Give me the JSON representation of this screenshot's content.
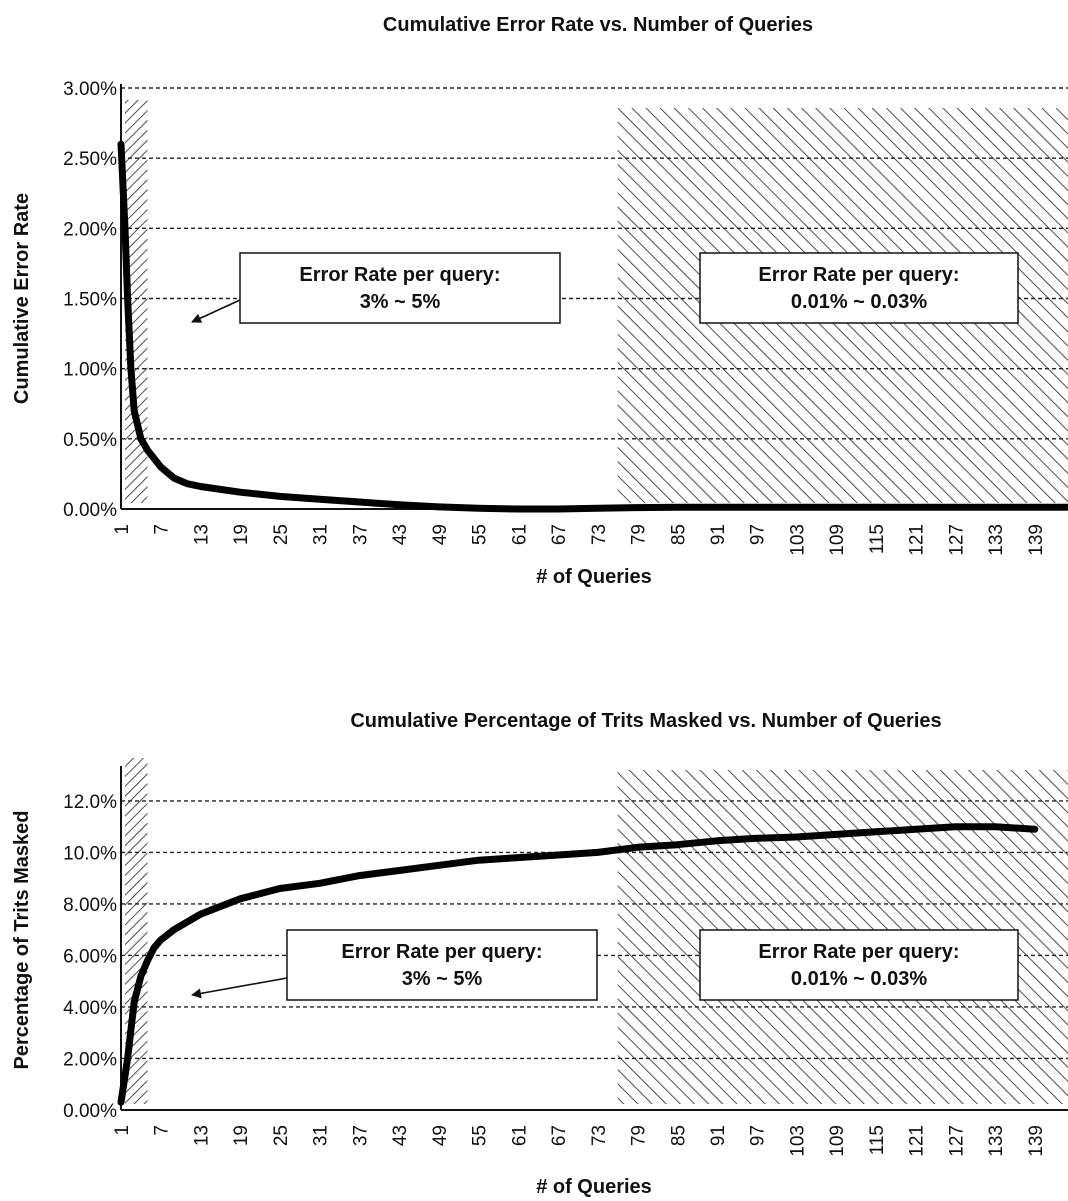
{
  "chart_data": [
    {
      "type": "line",
      "title": "Cumulative Error Rate vs. Number of Queries",
      "xlabel": "# of Queries",
      "ylabel": "Cumulative Error Rate",
      "y_ticks": [
        "0.00%",
        "0.50%",
        "1.00%",
        "1.50%",
        "2.00%",
        "2.50%",
        "3.00%"
      ],
      "x_ticks": [
        "1",
        "7",
        "13",
        "19",
        "25",
        "31",
        "37",
        "43",
        "49",
        "55",
        "61",
        "67",
        "73",
        "79",
        "85",
        "91",
        "97",
        "103",
        "109",
        "115",
        "121",
        "127",
        "133",
        "139"
      ],
      "ylim": [
        0,
        3.0
      ],
      "xlim": [
        1,
        144
      ],
      "grid": "horizontal dashed",
      "series": [
        {
          "x": [
            1,
            1.6,
            2,
            2.5,
            3,
            4,
            5,
            7,
            9,
            11,
            13,
            19,
            25,
            31,
            37,
            43,
            49,
            55,
            61,
            67,
            73,
            79,
            85,
            91,
            97,
            103,
            109,
            115,
            121,
            127,
            133,
            139,
            144
          ],
          "values": [
            2.6,
            2.0,
            1.5,
            1.0,
            0.7,
            0.5,
            0.42,
            0.3,
            0.22,
            0.18,
            0.16,
            0.12,
            0.09,
            0.07,
            0.05,
            0.03,
            0.015,
            0.005,
            0.0,
            0.0,
            0.005,
            0.01,
            0.012,
            0.012,
            0.012,
            0.012,
            0.012,
            0.012,
            0.012,
            0.012,
            0.012,
            0.012,
            0.012
          ]
        }
      ],
      "regions": [
        {
          "x_start": 0,
          "x_end": 5,
          "label_line1": "Error Rate per query:",
          "label_line2": "3% ~ 5%"
        },
        {
          "x_start": 76,
          "x_end": 144,
          "label_line1": "Error Rate per query:",
          "label_line2": "0.01% ~ 0.03%"
        }
      ]
    },
    {
      "type": "line",
      "title": "Cumulative Percentage of Trits Masked vs. Number of Queries",
      "xlabel": "# of Queries",
      "ylabel": "Percentage of Trits Masked",
      "y_ticks": [
        "0.00%",
        "2.00%",
        "4.00%",
        "6.00%",
        "8.00%",
        "10.0%",
        "12.0%"
      ],
      "x_ticks": [
        "1",
        "7",
        "13",
        "19",
        "25",
        "31",
        "37",
        "43",
        "49",
        "55",
        "61",
        "67",
        "73",
        "79",
        "85",
        "91",
        "97",
        "103",
        "109",
        "115",
        "121",
        "127",
        "133",
        "139"
      ],
      "ylim": [
        0,
        13.2
      ],
      "xlim": [
        1,
        144
      ],
      "grid": "horizontal dashed",
      "series": [
        {
          "x": [
            1,
            2,
            3,
            4,
            5,
            6,
            7,
            9,
            13,
            19,
            25,
            31,
            37,
            43,
            49,
            55,
            61,
            67,
            73,
            79,
            85,
            91,
            97,
            103,
            109,
            115,
            121,
            127,
            133,
            139
          ],
          "values": [
            0.3,
            2.0,
            4.2,
            5.2,
            5.8,
            6.3,
            6.6,
            7.0,
            7.6,
            8.2,
            8.6,
            8.8,
            9.1,
            9.3,
            9.5,
            9.7,
            9.8,
            9.9,
            10.0,
            10.2,
            10.3,
            10.45,
            10.55,
            10.6,
            10.7,
            10.8,
            10.9,
            11.0,
            11.0,
            10.9
          ]
        }
      ],
      "regions": [
        {
          "x_start": 0,
          "x_end": 5,
          "label_line1": "Error Rate per query:",
          "label_line2": "3% ~ 5%"
        },
        {
          "x_start": 76,
          "x_end": 144,
          "label_line1": "Error Rate per query:",
          "label_line2": "0.01% ~ 0.03%"
        }
      ]
    }
  ]
}
